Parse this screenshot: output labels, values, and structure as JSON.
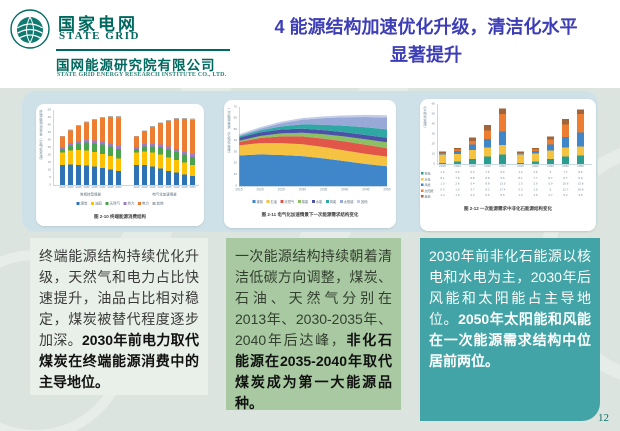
{
  "header": {
    "logo": {
      "brand_cn": "国家电网",
      "brand_en": "STATE GRID",
      "org_cn": "国网能源研究院有限公司",
      "org_en": "STATE GRID ENERGY RESEARCH INSTITUTE CO., LTD."
    },
    "title_line1": "4 能源结构加速优化升级，清洁化水平",
    "title_line2": "显著提升",
    "title_color": "#3d3db6"
  },
  "colors": {
    "brand_teal": "#00695f",
    "panel_blue": "#cfe1e8",
    "slide_bg": "#dbe4de"
  },
  "notes": [
    {
      "text": "终端能源结构持续优化升级，天然气和电力占比快速提升，油品占比相对稳定，煤炭被替代程度逐步加深。",
      "bold": "2030年前电力取代煤炭在终端能源消费中的主导地位。",
      "bg": "#e9efe9",
      "color": "#3a3a3a"
    },
    {
      "text": "一次能源结构持续朝着清洁低碳方向调整，煤炭、石油、天然气分别在2013年、2030-2035年、2040年后达峰，",
      "bold": "非化石能源在2035-2040年取代煤炭成为第一大能源品种。",
      "bg": "#a8c9a1",
      "color": "#33402f"
    },
    {
      "text": "2030年前非化石能源以核电和水电为主，2030年后风能和太阳能占主导地位。",
      "bold": "2050年太阳能和风能在一次能源需求结构中位居前两位。",
      "bg": "#42a4a6",
      "color": "#ffffff"
    }
  ],
  "footer": {
    "page_number": "12",
    "color": "#0c6e68"
  },
  "chart_data": [
    {
      "id": "fig-2-10",
      "type": "bar",
      "caption": "图 2-10  终端能源消费结构",
      "ylabel": "终端能源消费量（亿吨标准煤）",
      "ylim": [
        0,
        50
      ],
      "yticks": [
        0,
        5,
        10,
        15,
        20,
        25,
        30,
        35,
        40,
        45,
        50
      ],
      "categories": [
        "2015",
        "2020",
        "2025",
        "2030",
        "2035",
        "2040",
        "2045",
        "2050"
      ],
      "groups": [
        {
          "label": "常规转型情景",
          "series": [
            {
              "name": "煤炭",
              "color": "#2e74b5",
              "values": [
                13.5,
                13.8,
                13.5,
                13.0,
                12.2,
                11.2,
                10.2,
                9.2
              ]
            },
            {
              "name": "油品",
              "color": "#ffc000",
              "values": [
                8.2,
                9.2,
                9.8,
                10.0,
                9.8,
                9.5,
                9.0,
                8.5
              ]
            },
            {
              "name": "天然气",
              "color": "#4ba34f",
              "values": [
                2.4,
                3.4,
                4.4,
                5.2,
                5.8,
                6.2,
                6.4,
                6.4
              ]
            },
            {
              "name": "热力",
              "color": "#9e7cc3",
              "values": [
                1.4,
                1.6,
                1.7,
                1.8,
                1.9,
                2.0,
                2.0,
                2.0
              ]
            },
            {
              "name": "电力",
              "color": "#ed7d31",
              "values": [
                6.9,
                8.4,
                10.0,
                11.8,
                13.8,
                15.8,
                17.6,
                19.0
              ]
            },
            {
              "name": "其他",
              "color": "#b0b0b0",
              "values": [
                0.4,
                0.5,
                0.5,
                0.6,
                0.6,
                0.7,
                0.7,
                0.8
              ]
            }
          ]
        },
        {
          "label": "电气化加速情景",
          "series": [
            {
              "name": "煤炭",
              "color": "#2e74b5",
              "values": [
                13.5,
                13.2,
                12.2,
                11.0,
                9.5,
                8.2,
                7.0,
                6.0
              ]
            },
            {
              "name": "油品",
              "color": "#ffc000",
              "values": [
                8.2,
                9.0,
                9.4,
                9.4,
                9.0,
                8.5,
                8.0,
                7.4
              ]
            },
            {
              "name": "天然气",
              "color": "#4ba34f",
              "values": [
                2.4,
                3.4,
                4.2,
                4.8,
                5.2,
                5.4,
                5.4,
                5.2
              ]
            },
            {
              "name": "热力",
              "color": "#9e7cc3",
              "values": [
                1.4,
                1.6,
                1.7,
                1.8,
                1.9,
                2.0,
                2.0,
                2.0
              ]
            },
            {
              "name": "电力",
              "color": "#ed7d31",
              "values": [
                6.9,
                8.8,
                11.2,
                14.2,
                17.2,
                19.8,
                21.6,
                22.8
              ]
            },
            {
              "name": "其他",
              "color": "#b0b0b0",
              "values": [
                0.4,
                0.5,
                0.5,
                0.6,
                0.6,
                0.7,
                0.7,
                0.8
              ]
            }
          ]
        }
      ]
    },
    {
      "id": "fig-2-11",
      "type": "area",
      "caption": "图 2-11  电气化加速情景下一次能源需求结构变化",
      "ylabel": "一次能源需求（亿吨标准煤）",
      "ylim": [
        0,
        70
      ],
      "yticks": [
        0,
        10,
        20,
        30,
        40,
        50,
        60,
        70
      ],
      "x": [
        "2015",
        "2020",
        "2025",
        "2030",
        "2035",
        "2040",
        "2045",
        "2050"
      ],
      "xunit": "年",
      "series": [
        {
          "name": "煤炭",
          "color": "#3f87c9",
          "values": [
            27,
            28,
            27.5,
            26.5,
            24.5,
            22,
            19.5,
            17.5
          ]
        },
        {
          "name": "石油",
          "color": "#f5c242",
          "values": [
            9,
            10,
            10.5,
            10.5,
            10,
            9.5,
            9,
            8.5
          ]
        },
        {
          "name": "天然气",
          "color": "#e25649",
          "values": [
            3,
            4.5,
            6,
            7,
            7.5,
            8,
            8,
            7.5
          ]
        },
        {
          "name": "核能",
          "color": "#8cc063",
          "values": [
            1,
            1.8,
            2.6,
            3.2,
            3.8,
            4.3,
            4.8,
            5.2
          ]
        },
        {
          "name": "水能",
          "color": "#4c52a8",
          "values": [
            3,
            3.2,
            3.4,
            3.6,
            3.7,
            3.8,
            3.9,
            4
          ]
        },
        {
          "name": "风能",
          "color": "#2fa8a4",
          "values": [
            1,
            1.8,
            2.8,
            3.8,
            4.8,
            5.8,
            6.8,
            7.5
          ]
        },
        {
          "name": "太阳能",
          "color": "#98a9d8",
          "values": [
            0.8,
            1.5,
            2.8,
            4.2,
            5.8,
            7.5,
            9.2,
            10.5
          ]
        },
        {
          "name": "其他",
          "color": "#c3cde8",
          "values": [
            1,
            1.2,
            1.4,
            1.5,
            1.6,
            1.7,
            1.8,
            2
          ]
        }
      ]
    },
    {
      "id": "fig-2-12",
      "type": "bar",
      "caption": "图 2-12  一次能源需求中非化石能源结构变化",
      "ylabel": "（亿吨标准煤）",
      "ylim": [
        0,
        60
      ],
      "yticks": [
        0,
        10,
        20,
        30,
        40,
        50,
        60
      ],
      "categories": [
        "2015",
        "2020",
        "2030",
        "2040",
        "2050"
      ],
      "show_table": true,
      "groups": [
        {
          "label": "常规转型情景",
          "series": [
            {
              "name": "核电",
              "color": "#2a9d8f",
              "values": [
                1.2,
                2.6,
                5.2,
                7.5,
                9.6
              ]
            },
            {
              "name": "水电",
              "color": "#f5c242",
              "values": [
                8.1,
                7.6,
                8.8,
                8.8,
                9.6
              ]
            },
            {
              "name": "风能",
              "color": "#3f87c9",
              "values": [
                1.3,
                2.6,
                5.4,
                8.8,
                13.5
              ]
            },
            {
              "name": "太阳能",
              "color": "#ed7d31",
              "values": [
                0.3,
                1.6,
                3.7,
                8.2,
                17.4
              ]
            },
            {
              "name": "其他",
              "color": "#a0653a",
              "values": [
                1.4,
                1.5,
                3.2,
                5.5,
                5.6
              ]
            }
          ]
        },
        {
          "label": "电气化加速情景",
          "series": [
            {
              "name": "核电",
              "color": "#2a9d8f",
              "values": [
                1.2,
                2.6,
                5.0,
                7.7,
                8.6
              ]
            },
            {
              "name": "水电",
              "color": "#f5c242",
              "values": [
                8.1,
                7.7,
                8.7,
                8.7,
                8.9
              ]
            },
            {
              "name": "风能",
              "color": "#3f87c9",
              "values": [
                1.3,
                2.6,
                5.9,
                10.6,
                13.8
              ]
            },
            {
              "name": "太阳能",
              "color": "#ed7d31",
              "values": [
                0.3,
                1.6,
                5.0,
                12.7,
                18.8
              ]
            },
            {
              "name": "其他",
              "color": "#a0653a",
              "values": [
                1.4,
                1.6,
                2.7,
                5.2,
                4.6
              ]
            }
          ]
        }
      ]
    }
  ]
}
